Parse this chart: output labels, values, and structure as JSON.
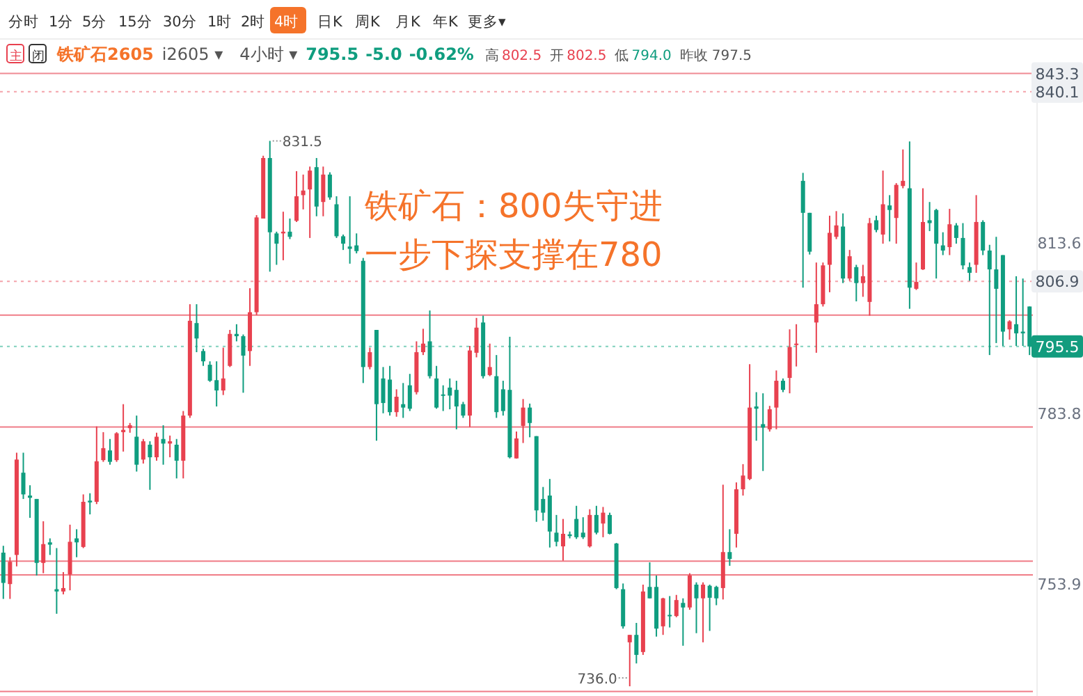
{
  "chart_data": {
    "type": "candlestick",
    "title": "铁矿石：800失守进一步下探支撑在780",
    "categories": [
      null,
      null,
      null,
      null,
      null,
      null,
      null,
      null,
      null,
      null,
      null,
      null,
      null,
      null,
      null,
      null,
      null,
      null,
      null,
      null,
      null,
      null,
      null,
      null,
      null,
      null,
      null,
      null,
      null,
      null,
      null,
      null,
      null,
      null,
      null,
      null,
      null,
      null,
      null,
      null,
      null,
      null,
      null,
      null,
      null,
      null,
      null,
      null,
      null,
      null,
      null,
      null,
      null,
      null,
      null,
      null,
      null,
      null,
      null,
      null,
      null,
      null,
      null,
      null,
      null,
      null,
      null,
      null,
      null,
      null,
      null,
      null,
      null,
      null,
      null,
      null,
      null,
      null,
      null,
      null,
      null,
      null,
      null,
      null,
      null,
      null,
      null,
      null,
      null,
      null,
      null,
      null,
      null,
      null,
      null,
      null,
      null,
      null,
      null,
      null,
      null,
      null,
      null,
      null,
      null,
      null,
      null,
      null,
      null,
      null,
      null,
      null,
      null,
      null,
      null,
      null,
      null,
      null,
      null,
      null,
      null,
      null,
      null,
      null,
      null,
      null,
      null,
      null,
      null,
      null,
      null,
      null,
      null,
      null,
      null,
      null,
      null,
      null,
      null,
      null,
      null,
      null,
      null,
      null,
      null,
      null,
      null,
      null,
      null,
      null,
      null,
      null,
      null,
      null,
      null
    ],
    "ohlc": [
      [
        759.4,
        760.6,
        751.3,
        754.1
      ],
      [
        753.9,
        758.6,
        751.3,
        757.8
      ],
      [
        759,
        776.9,
        757,
        775.7
      ],
      [
        773.4,
        776.9,
        768.8,
        769.6
      ],
      [
        769.4,
        771.2,
        765.5,
        769
      ],
      [
        768.8,
        768.8,
        755.4,
        757.6
      ],
      [
        757.6,
        764.9,
        755.8,
        760.9
      ],
      [
        761.2,
        761.9,
        759,
        760.8
      ],
      [
        753,
        760.2,
        748.7,
        752.6
      ],
      [
        752.6,
        756,
        752.1,
        753.2
      ],
      [
        755.6,
        764.3,
        752.8,
        761.3
      ],
      [
        761.9,
        763.5,
        758.6,
        761.2
      ],
      [
        760.4,
        769.6,
        760.2,
        768.3
      ],
      [
        768.5,
        769.8,
        766.1,
        768.2
      ],
      [
        768.3,
        781.5,
        767.9,
        775.4
      ],
      [
        775.6,
        780.5,
        775.3,
        777.7
      ],
      [
        777.3,
        779.3,
        774.8,
        775.3
      ],
      [
        775.6,
        780.5,
        775.3,
        780.3
      ],
      [
        780.5,
        785.4,
        777.1,
        780.9
      ],
      [
        781.2,
        782.1,
        780.4,
        781.7
      ],
      [
        779.7,
        783.4,
        773.6,
        774.8
      ],
      [
        775.7,
        779.3,
        775,
        778.9
      ],
      [
        778.3,
        778.9,
        770.4,
        776.1
      ],
      [
        776.1,
        780.4,
        775.5,
        779.7
      ],
      [
        779.3,
        781.7,
        774.8,
        778.5
      ],
      [
        778.5,
        779.9,
        776.1,
        778.9
      ],
      [
        778.3,
        779.3,
        772.4,
        775.5
      ],
      [
        775.5,
        784.2,
        772.4,
        783.4
      ],
      [
        783.4,
        802.9,
        783,
        800
      ],
      [
        799.6,
        802.9,
        794.5,
        796.9
      ],
      [
        794.7,
        795.1,
        792.1,
        792.9
      ],
      [
        792.3,
        792.9,
        789.3,
        789.5
      ],
      [
        789.6,
        792.9,
        785,
        787.8
      ],
      [
        787.8,
        795.3,
        787,
        789.9
      ],
      [
        792.1,
        798.4,
        791.9,
        797.7
      ],
      [
        797.7,
        799.4,
        796.4,
        797.3
      ],
      [
        797.3,
        797.6,
        787.4,
        793.9
      ],
      [
        794.7,
        805.7,
        792.1,
        801.5
      ],
      [
        801.5,
        818.5,
        801,
        818.1
      ],
      [
        817.9,
        828.9,
        817.9,
        828.5
      ],
      [
        828.5,
        831.5,
        808.6,
        815.5
      ],
      [
        815.3,
        815.6,
        809.8,
        813.5
      ],
      [
        815.3,
        819.1,
        810.6,
        815.6
      ],
      [
        815.6,
        817.9,
        814.3,
        814.7
      ],
      [
        817.5,
        826.2,
        817.3,
        821.8
      ],
      [
        822,
        825.6,
        819.5,
        822.8
      ],
      [
        823,
        827,
        814.5,
        826.3
      ],
      [
        826.9,
        828.5,
        818.3,
        820
      ],
      [
        820.8,
        827,
        818.3,
        825.6
      ],
      [
        825.6,
        826,
        821.2,
        821.6
      ],
      [
        820.4,
        821.8,
        814.5,
        814.8
      ],
      [
        814.8,
        815.1,
        812.4,
        813.5
      ],
      [
        813,
        821.8,
        810,
        812.6
      ],
      [
        813.2,
        815.3,
        811.8,
        812.2
      ],
      [
        810.5,
        811,
        789.1,
        791.9
      ],
      [
        791.9,
        795.3,
        791.5,
        794.5
      ],
      [
        798.4,
        798.4,
        779,
        785.4
      ],
      [
        789.9,
        791.9,
        783.8,
        785.6
      ],
      [
        789.7,
        792.1,
        783.4,
        784
      ],
      [
        784,
        788,
        783.2,
        786.7
      ],
      [
        785.4,
        789.1,
        783,
        784.8
      ],
      [
        788.7,
        790.7,
        784.2,
        784.6
      ],
      [
        787.5,
        796.4,
        787.1,
        794.5
      ],
      [
        794.5,
        798.6,
        794,
        796
      ],
      [
        796.4,
        801.8,
        789.9,
        790.3
      ],
      [
        789.9,
        792.1,
        784.6,
        784.8
      ],
      [
        787.1,
        788.7,
        784.2,
        786.9
      ],
      [
        788.3,
        789.9,
        784.5,
        786.9
      ],
      [
        787.9,
        789.5,
        781,
        785
      ],
      [
        785.4,
        785.8,
        783,
        783.4
      ],
      [
        783.4,
        795.6,
        781.4,
        794.8
      ],
      [
        794.4,
        800.5,
        793.6,
        798.8
      ],
      [
        799.7,
        800.9,
        789.9,
        790.3
      ],
      [
        790.5,
        796,
        790.3,
        791.9
      ],
      [
        790.3,
        794,
        783,
        784
      ],
      [
        788,
        789.5,
        783.4,
        784.2
      ],
      [
        787.9,
        797.2,
        775.9,
        776.1
      ],
      [
        775.9,
        780.6,
        775.9,
        779.4
      ],
      [
        781.6,
        786.3,
        778.6,
        784.8
      ],
      [
        784.8,
        785.5,
        779.6,
        782.1
      ],
      [
        779.8,
        779.8,
        764.8,
        766.8
      ],
      [
        768.8,
        770.9,
        765,
        766.4
      ],
      [
        769.4,
        772.3,
        760.3,
        763.1
      ],
      [
        762.9,
        766,
        760.5,
        761.3
      ],
      [
        760.5,
        765.3,
        758,
        762.7
      ],
      [
        762.6,
        763.1,
        761.9,
        762.3
      ],
      [
        765.3,
        767.6,
        761.8,
        762.1
      ],
      [
        762.9,
        765.6,
        761.8,
        762.1
      ],
      [
        760.5,
        767,
        760.3,
        766
      ],
      [
        766,
        767.6,
        762.6,
        762.9
      ],
      [
        764.5,
        767.4,
        762.1,
        766.4
      ],
      [
        766,
        766.4,
        762.6,
        762.7
      ],
      [
        761,
        761.1,
        753,
        753.2
      ],
      [
        753,
        754,
        746.1,
        746.5
      ],
      [
        743.7,
        745,
        736.0,
        745
      ],
      [
        745,
        747.1,
        740,
        741.5
      ],
      [
        742,
        753.8,
        741.5,
        752.6
      ],
      [
        753.4,
        757.7,
        751.4,
        751.4
      ],
      [
        753.4,
        755.4,
        744.7,
        746.1
      ],
      [
        746.5,
        751.5,
        745,
        751.4
      ],
      [
        748.5,
        751.8,
        746.3,
        748.3
      ],
      [
        748.3,
        752,
        748.1,
        751.1
      ],
      [
        750.6,
        751.4,
        743.1,
        749.8
      ],
      [
        749.8,
        755.8,
        749.4,
        755.4
      ],
      [
        753.8,
        754.2,
        745.3,
        751.4
      ],
      [
        751.4,
        754.2,
        743.7,
        753.8
      ],
      [
        753.6,
        753.8,
        745.7,
        751.5
      ],
      [
        753.4,
        753.6,
        750.2,
        751.4
      ],
      [
        753.2,
        771.3,
        751.2,
        759.5
      ],
      [
        759.5,
        763.5,
        757.1,
        758.3
      ],
      [
        762.7,
        771.7,
        760.3,
        770.5
      ],
      [
        770.5,
        774.9,
        769.4,
        772.9
      ],
      [
        772.3,
        792.4,
        772.1,
        784.8
      ],
      [
        785,
        787.5,
        779,
        784.6
      ],
      [
        781.9,
        787.3,
        773.7,
        781.3
      ],
      [
        781,
        785.1,
        780.6,
        784.5
      ],
      [
        784.8,
        791.3,
        781,
        789.5
      ],
      [
        789.5,
        789.9,
        787.5,
        787.9
      ],
      [
        790,
        798.5,
        787.3,
        795.4
      ],
      [
        795.8,
        799.4,
        792,
        796
      ],
      [
        824.5,
        825.9,
        805.8,
        818.9
      ],
      [
        818.9,
        818.9,
        811.6,
        812.1
      ],
      [
        799.7,
        810.2,
        794.4,
        802.9
      ],
      [
        802.9,
        810.2,
        802.5,
        809.7
      ],
      [
        809.8,
        818.4,
        805,
        815.4
      ],
      [
        814.7,
        819.2,
        814.3,
        816.7
      ],
      [
        816.5,
        818.8,
        806.6,
        807.4
      ],
      [
        807.4,
        812.4,
        807,
        811.3
      ],
      [
        809.4,
        809.8,
        803.4,
        806.6
      ],
      [
        806.6,
        809.8,
        804.2,
        807.8
      ],
      [
        803.3,
        818,
        800.9,
        817.1
      ],
      [
        817.6,
        818.4,
        815.5,
        815.9
      ],
      [
        815.1,
        826.3,
        813.5,
        820.4
      ],
      [
        820.2,
        822,
        813.9,
        819.4
      ],
      [
        818,
        824.1,
        813.5,
        823.8
      ],
      [
        823.6,
        830,
        823.2,
        824.5
      ],
      [
        823.2,
        831.4,
        802.1,
        805.8
      ],
      [
        805.6,
        810.2,
        805.4,
        806.8
      ],
      [
        809,
        823.2,
        808.9,
        817.3
      ],
      [
        817.6,
        820.8,
        815.7,
        817.1
      ],
      [
        819.4,
        819.6,
        807.4,
        813.5
      ],
      [
        813.2,
        815.5,
        811.5,
        812.3
      ],
      [
        812.9,
        819.6,
        811.5,
        816.9
      ],
      [
        816.7,
        817.1,
        813.5,
        814.5
      ],
      [
        814.5,
        817.1,
        809,
        809.7
      ],
      [
        809.4,
        810.2,
        807,
        808.4
      ],
      [
        809.8,
        822,
        808.4,
        817.3
      ],
      [
        817.3,
        817.6,
        811.5,
        812.3
      ],
      [
        812.3,
        813.3,
        794,
        809
      ],
      [
        809,
        814.7,
        796.1,
        805.6
      ],
      [
        811.5,
        811.5,
        795.6,
        798.1
      ],
      [
        798.5,
        800.1,
        796.7,
        799.9
      ],
      [
        799.4,
        807.8,
        795.6,
        797.8
      ],
      [
        798.1,
        807.4,
        795.6,
        797.8
      ],
      [
        802.5,
        802.5,
        794.0,
        795.5
      ]
    ],
    "ylim": [
      734.3,
      845.2
    ],
    "yticks": [
      753.9,
      783.8,
      813.6
    ],
    "ref_lines": [
      {
        "axis": "y",
        "value": 843.3,
        "label": "843.3",
        "color": "#f08a94",
        "line_style": "solid"
      },
      {
        "axis": "y",
        "value": 840.1,
        "label": "840.1",
        "color": "#f4a3aa",
        "line_style": "dotted"
      },
      {
        "axis": "y",
        "value": 806.9,
        "label": "806.9",
        "color": "#f4a3aa",
        "line_style": "dotted"
      },
      {
        "axis": "y",
        "value": 795.5,
        "label": "795.5",
        "color": "#7fd1bd",
        "line_style": "dotted"
      },
      {
        "axis": "y",
        "value": 801.0,
        "color": "#f07c87",
        "line_style": "solid"
      },
      {
        "axis": "y",
        "value": 781.4,
        "color": "#f07c87",
        "line_style": "solid"
      },
      {
        "axis": "y",
        "value": 757.9,
        "color": "#f07c87",
        "line_style": "solid"
      },
      {
        "axis": "y",
        "value": 755.5,
        "color": "#f07c87",
        "line_style": "solid"
      },
      {
        "axis": "y",
        "value": 735.1,
        "color": "#f07c87",
        "line_style": "solid"
      }
    ],
    "annotations": [
      "831.5",
      "736.0",
      "分时",
      "1分",
      "5分",
      "15分",
      "30分",
      "1时",
      "2时",
      "4时",
      "日K",
      "周K",
      "月K",
      "年K",
      "更多▾",
      "主",
      "闭",
      "铁矿石2605",
      "i2605 ▾",
      "4小时 ▾",
      "795.5",
      "-5.0",
      "-0.62%",
      "高",
      "802.5",
      "开",
      "802.5",
      "低",
      "794.0",
      "昨收",
      "797.5"
    ]
  }
}
